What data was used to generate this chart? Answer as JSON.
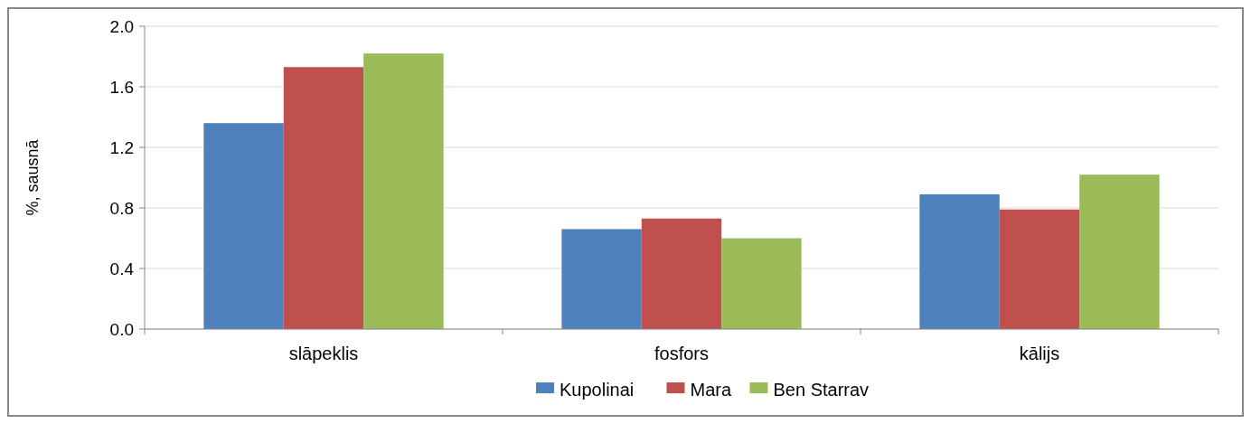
{
  "chart_data": {
    "type": "bar",
    "ylabel": "%, sausnā",
    "categories": [
      "slāpeklis",
      "fosfors",
      "kālijs"
    ],
    "series": [
      {
        "name": "Kupolinai",
        "color": "#4f81bd",
        "values": [
          1.36,
          0.66,
          0.89
        ]
      },
      {
        "name": "Mara",
        "color": "#c0504d",
        "values": [
          1.73,
          0.73,
          0.79
        ]
      },
      {
        "name": "Ben Starrav",
        "color": "#9bbb59",
        "values": [
          1.82,
          0.6,
          1.02
        ]
      }
    ],
    "ylim": [
      0,
      2
    ],
    "yticks": [
      {
        "value": 0,
        "label": "0.0"
      },
      {
        "value": 0.4,
        "label": "0.4"
      },
      {
        "value": 0.8,
        "label": "0.8"
      },
      {
        "value": 1.2,
        "label": "1.2"
      },
      {
        "value": 1.6,
        "label": "1.6"
      },
      {
        "value": 2,
        "label": "2.0"
      }
    ],
    "grid": "y",
    "legend": "bottom"
  }
}
